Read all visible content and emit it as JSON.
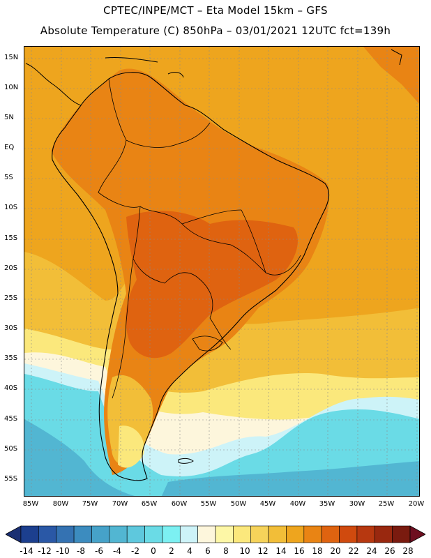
{
  "header": {
    "line1": "CPTEC/INPE/MCT –  Eta Model 15km – GFS",
    "line2": "Absolute Temperature (C) 850hPa – 03/01/2021 12UTC fct=139h"
  },
  "axes": {
    "lat_labels": [
      "15N",
      "10N",
      "5N",
      "EQ",
      "5S",
      "10S",
      "15S",
      "20S",
      "25S",
      "30S",
      "35S",
      "40S",
      "45S",
      "50S",
      "55S"
    ],
    "lon_labels": [
      "85W",
      "80W",
      "75W",
      "70W",
      "65W",
      "60W",
      "55W",
      "50W",
      "45W",
      "40W",
      "35W",
      "30W",
      "25W",
      "20W"
    ]
  },
  "colorbar": {
    "labels": [
      "-14",
      "-12",
      "-10",
      "-8",
      "-6",
      "-4",
      "-2",
      "0",
      "2",
      "4",
      "6",
      "8",
      "10",
      "12",
      "14",
      "16",
      "18",
      "20",
      "22",
      "24",
      "26",
      "28"
    ],
    "colors": [
      "#1c3f8e",
      "#2a58a6",
      "#3472b2",
      "#3c8cbf",
      "#46a2c9",
      "#52b6d2",
      "#5ec8dd",
      "#6adbe6",
      "#7cf0f2",
      "#cdf3f8",
      "#fdf6dc",
      "#fdf7a6",
      "#fbe87c",
      "#f6d35a",
      "#f2be38",
      "#eea51e",
      "#e98414",
      "#df6310",
      "#d04a0e",
      "#b73810",
      "#99280f",
      "#7a1b0f"
    ],
    "end_color_low": "#1a2f73",
    "end_color_high": "#6e0e20"
  },
  "map_colors": {
    "ocean_warm": "#eea51e",
    "hot": "#df6310",
    "warm": "#e98414",
    "mild": "#f2be38",
    "cool": "#fbe87c",
    "cold": "#cdf3f8",
    "colder": "#6adbe6",
    "coldest": "#52b6d2",
    "outline": "#000000",
    "grid": "#8a8a8a"
  }
}
